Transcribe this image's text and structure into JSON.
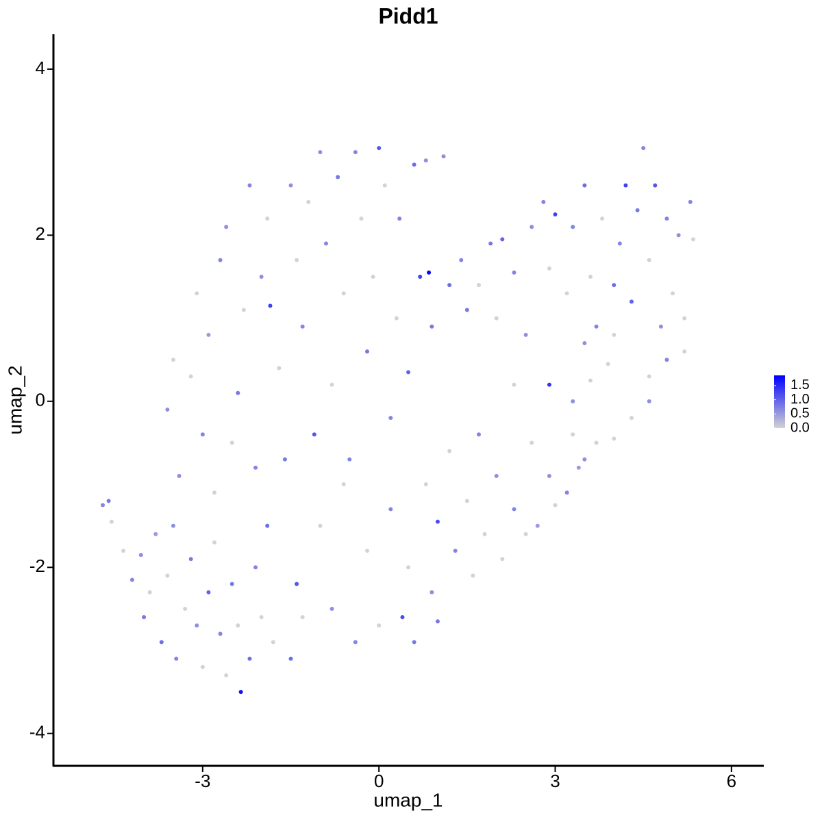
{
  "chart_data": {
    "type": "scatter",
    "title": "Pidd1",
    "x_label": "umap_1",
    "y_label": "umap_2",
    "xlim": [
      -5.54,
      6.55
    ],
    "ylim": [
      -4.39,
      4.42
    ],
    "xticks": [
      -3,
      0,
      3,
      6
    ],
    "yticks": [
      -4,
      -2,
      0,
      2,
      4
    ],
    "color_low": "#d3d3d3",
    "color_high": "#0000ff",
    "colorbar_lim": [
      0,
      1.86
    ],
    "colorbar_ticks": [
      {
        "value": 0,
        "label": "0.0"
      },
      0.5,
      {
        "value": 1,
        "label": "1.0"
      },
      1.5
    ],
    "x": [
      -4.7,
      -4.6,
      -4.55,
      -4.35,
      -4.2,
      -4.05,
      -4.0,
      -3.9,
      -3.8,
      -3.7,
      -3.6,
      -3.5,
      -3.45,
      -3.3,
      -3.2,
      -3.1,
      -3.0,
      -2.9,
      -2.8,
      -2.7,
      -2.6,
      -2.5,
      -2.4,
      -2.35,
      -2.2,
      -2.1,
      -2.0,
      -1.9,
      -1.8,
      -1.5,
      -1.4,
      -1.3,
      -3.6,
      -3.5,
      -3.4,
      -3.2,
      -3.1,
      -3.0,
      -2.9,
      -2.8,
      -2.7,
      -2.6,
      -2.5,
      -2.4,
      -2.3,
      -2.2,
      -2.1,
      -2.0,
      -1.9,
      -1.85,
      -1.7,
      -1.6,
      -1.5,
      -1.4,
      -1.3,
      -1.2,
      -1.1,
      -1.0,
      -0.9,
      -0.8,
      -0.7,
      -0.6,
      -0.5,
      -0.4,
      -0.3,
      -0.2,
      -0.1,
      0.0,
      0.1,
      0.2,
      0.3,
      0.35,
      0.5,
      0.6,
      0.7,
      0.8,
      0.85,
      0.9,
      1.1,
      1.2,
      -1.0,
      -0.8,
      -0.6,
      -0.4,
      -0.2,
      0.0,
      0.2,
      0.4,
      0.5,
      0.6,
      0.8,
      0.9,
      1.0,
      1.0,
      1.2,
      1.3,
      1.5,
      1.6,
      1.7,
      1.8,
      2.0,
      2.1,
      2.3,
      2.5,
      2.6,
      2.7,
      2.9,
      3.0,
      3.2,
      3.3,
      3.4,
      3.5,
      3.7,
      4.0,
      4.3,
      4.6,
      2.3,
      2.9,
      3.3,
      3.6,
      3.9,
      1.4,
      1.5,
      1.7,
      1.9,
      2.0,
      2.1,
      2.3,
      2.5,
      2.6,
      2.8,
      2.9,
      3.0,
      3.2,
      3.3,
      3.5,
      3.6,
      3.7,
      3.8,
      4.0,
      4.1,
      4.2,
      4.3,
      4.4,
      4.5,
      4.6,
      4.7,
      4.8,
      4.9,
      5.0,
      5.1,
      5.2,
      5.3,
      5.35,
      5.2,
      4.6,
      4.9,
      4.0,
      3.5
    ],
    "y": [
      -1.25,
      -1.2,
      -1.45,
      -1.8,
      -2.15,
      -1.85,
      -2.6,
      -2.3,
      -1.6,
      -2.9,
      -2.1,
      -1.5,
      -3.1,
      -2.5,
      -1.9,
      -2.7,
      -3.2,
      -2.3,
      -1.7,
      -2.8,
      -3.3,
      -2.2,
      -2.7,
      -3.5,
      -3.1,
      -2.0,
      -2.6,
      -1.5,
      -2.9,
      -3.1,
      -2.2,
      -2.6,
      -0.1,
      0.5,
      -0.9,
      0.3,
      1.3,
      -0.4,
      0.8,
      -1.1,
      1.7,
      2.1,
      -0.5,
      0.1,
      1.1,
      2.6,
      -0.8,
      1.5,
      2.2,
      1.15,
      0.4,
      -0.7,
      2.6,
      1.7,
      0.9,
      2.4,
      -0.4,
      3.0,
      1.9,
      0.2,
      2.7,
      1.3,
      -0.7,
      3.0,
      2.2,
      0.6,
      1.5,
      3.05,
      2.6,
      -0.2,
      1.0,
      2.2,
      0.35,
      2.85,
      1.5,
      2.9,
      1.55,
      0.9,
      2.95,
      1.4,
      -1.5,
      -2.5,
      -1.0,
      -2.9,
      -1.8,
      -2.7,
      -1.3,
      -2.6,
      -2.0,
      -2.9,
      -1.0,
      -2.3,
      -1.45,
      -2.65,
      -0.6,
      -1.8,
      -1.2,
      -2.1,
      -0.4,
      -1.6,
      -0.9,
      -1.9,
      -1.3,
      -1.6,
      -0.5,
      -1.5,
      -0.9,
      -1.25,
      -1.1,
      -0.4,
      -0.8,
      -0.7,
      -0.5,
      -0.45,
      -0.2,
      0.0,
      0.2,
      0.2,
      0.0,
      0.25,
      0.45,
      1.7,
      1.1,
      1.4,
      1.9,
      1.0,
      1.95,
      1.55,
      0.8,
      2.1,
      2.4,
      1.6,
      2.25,
      1.3,
      2.1,
      2.6,
      1.5,
      0.9,
      2.2,
      1.4,
      1.9,
      2.6,
      1.2,
      2.3,
      3.05,
      1.7,
      2.6,
      0.9,
      2.2,
      1.3,
      2.0,
      0.6,
      2.4,
      1.95,
      1.0,
      0.3,
      0.5,
      0.8,
      0.7
    ],
    "values": [
      0.7,
      0.8,
      0,
      0,
      0.7,
      0.6,
      0.8,
      0,
      0.5,
      0.9,
      0,
      0.6,
      0.7,
      0,
      0.8,
      0.6,
      0,
      1.0,
      0,
      0.7,
      0,
      0.8,
      0,
      1.7,
      0.9,
      0.7,
      0,
      0.9,
      0,
      0.9,
      1.1,
      0,
      0.6,
      0,
      0.6,
      0,
      0,
      0.7,
      0.5,
      0,
      0.7,
      0.6,
      0,
      0.8,
      0,
      0.7,
      0.7,
      0.6,
      0,
      1.3,
      0,
      0.8,
      0.6,
      0,
      0.7,
      0,
      1.1,
      0.6,
      0.7,
      0,
      0.8,
      0,
      0.7,
      0.7,
      0,
      0.8,
      0,
      1.1,
      0,
      0.7,
      0,
      0.7,
      1.0,
      0.9,
      1.3,
      0.6,
      1.8,
      0.8,
      0.6,
      0.9,
      0,
      0.6,
      0,
      0.7,
      0,
      0,
      0.7,
      1.2,
      0,
      0.8,
      0,
      0.6,
      1.2,
      0.8,
      0,
      0.7,
      0,
      0,
      0.7,
      0,
      0.6,
      0,
      0.7,
      0,
      0,
      0.5,
      0.6,
      0,
      0.7,
      0,
      0.5,
      0.6,
      0,
      0,
      0,
      0.6,
      0,
      1.4,
      0.6,
      0,
      0,
      0.7,
      0.8,
      0,
      0.8,
      0,
      1.0,
      0.7,
      0.6,
      0.6,
      0.7,
      0,
      1.3,
      0,
      0.7,
      0.9,
      0,
      0.7,
      0,
      0.9,
      0.7,
      1.3,
      1.0,
      0.8,
      0.7,
      0,
      1.1,
      0.6,
      0.7,
      0,
      0.6,
      0,
      0.7,
      0,
      0,
      0,
      0.7,
      0,
      0.6
    ]
  }
}
